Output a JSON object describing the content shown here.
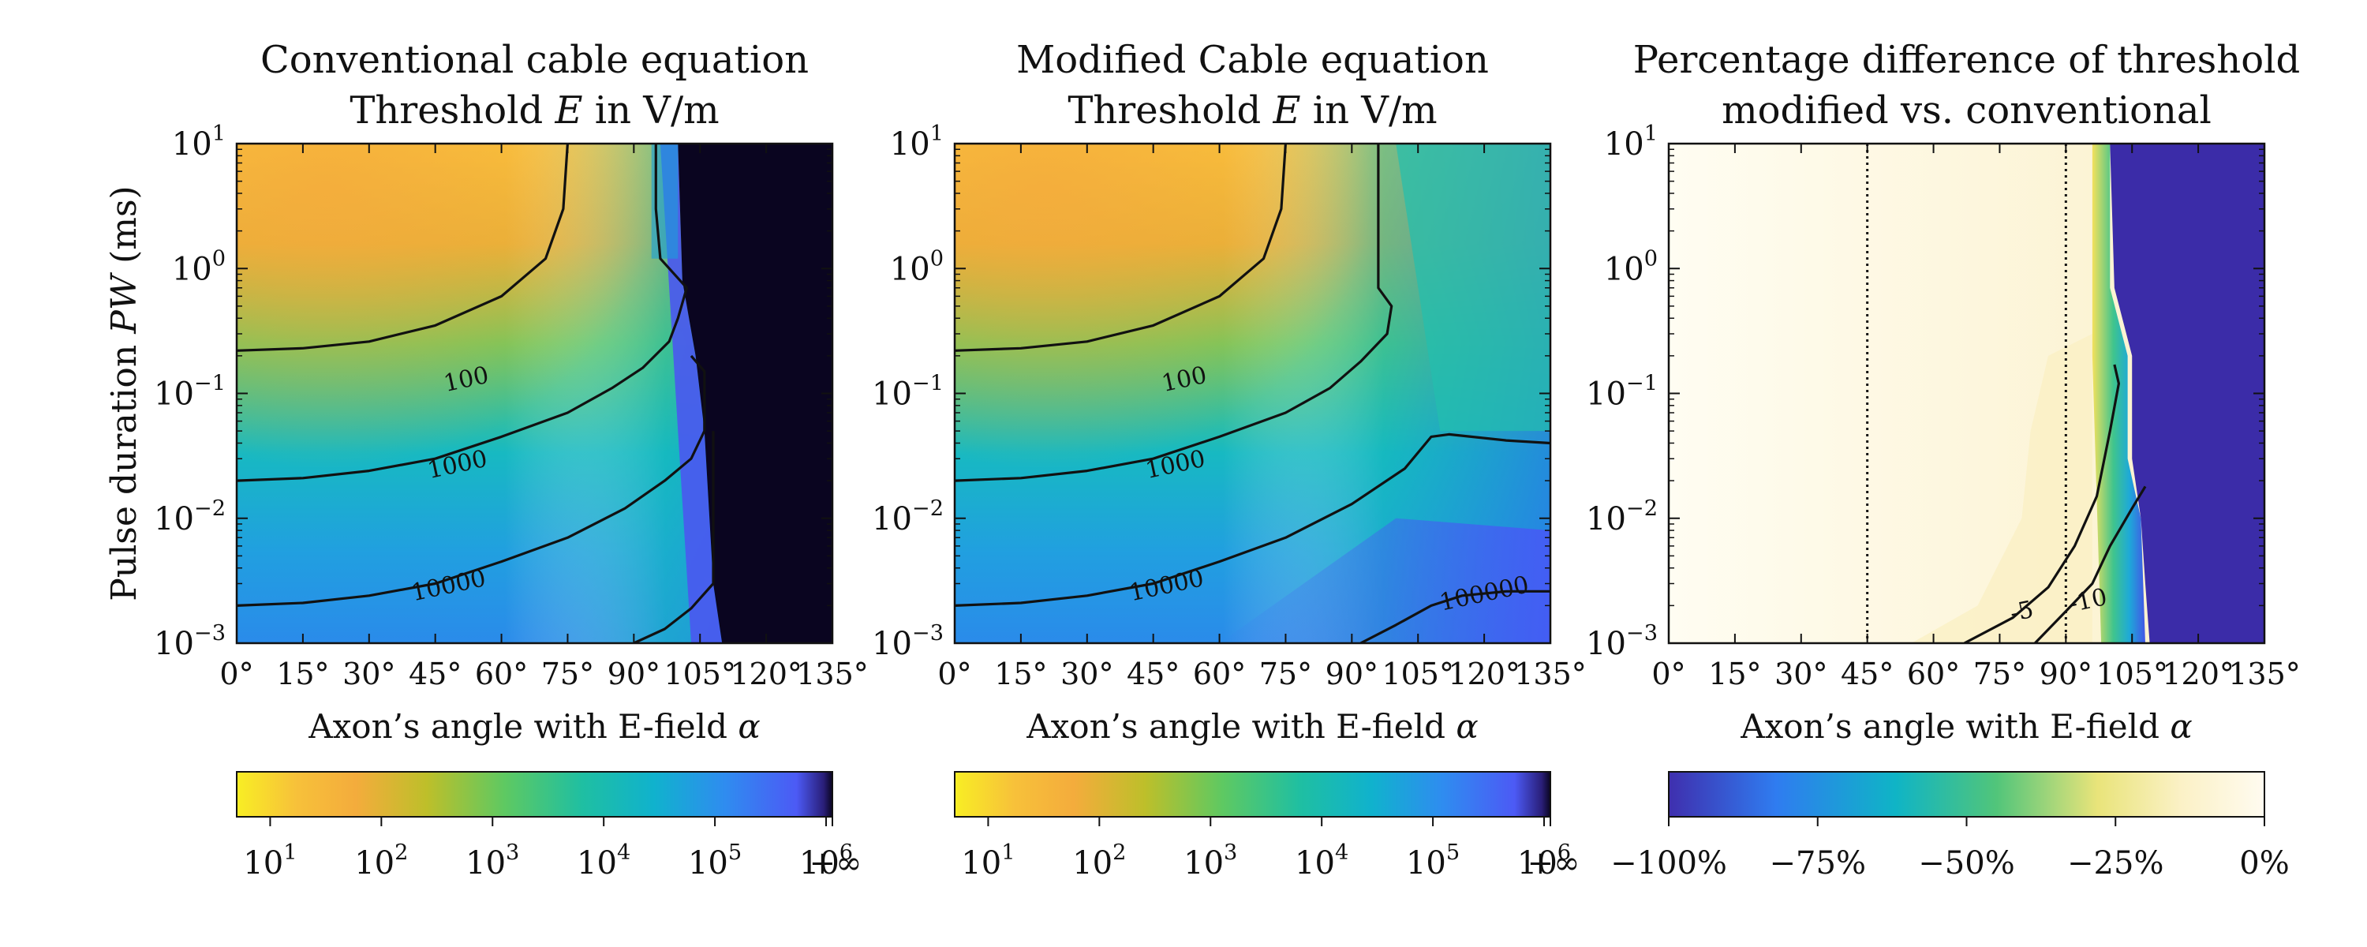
{
  "chart_data": [
    {
      "type": "heatmap",
      "title": [
        "Conventional cable equation",
        "Threshold E in V/m"
      ],
      "xlabel": "Axon’s angle with E-field α",
      "ylabel": "Pulse duration PW (ms)",
      "x_ticks": [
        "0°",
        "15°",
        "30°",
        "45°",
        "60°",
        "75°",
        "90°",
        "105°",
        "120°",
        "135°"
      ],
      "x_range": [
        0,
        135
      ],
      "y_scale": "log",
      "y_ticks": [
        "10^-3",
        "10^-2",
        "10^-1",
        "10^0",
        "10^1"
      ],
      "y_range": [
        0.001,
        10
      ],
      "contours": [
        {
          "level": "100",
          "points": [
            [
              0,
              0.22
            ],
            [
              15,
              0.23
            ],
            [
              30,
              0.26
            ],
            [
              45,
              0.35
            ],
            [
              60,
              0.6
            ],
            [
              70,
              1.2
            ],
            [
              74,
              3
            ],
            [
              75,
              10
            ]
          ]
        },
        {
          "level": "1000",
          "points": [
            [
              0,
              0.02
            ],
            [
              15,
              0.021
            ],
            [
              30,
              0.024
            ],
            [
              45,
              0.03
            ],
            [
              60,
              0.045
            ],
            [
              75,
              0.07
            ],
            [
              85,
              0.11
            ],
            [
              92,
              0.16
            ],
            [
              98,
              0.26
            ],
            [
              100,
              0.4
            ],
            [
              102,
              0.7
            ],
            [
              96,
              1.2
            ],
            [
              95,
              3
            ],
            [
              95,
              10
            ]
          ]
        },
        {
          "level": "10000",
          "points": [
            [
              0,
              0.002
            ],
            [
              15,
              0.0021
            ],
            [
              30,
              0.0024
            ],
            [
              45,
              0.003
            ],
            [
              60,
              0.0045
            ],
            [
              75,
              0.007
            ],
            [
              88,
              0.012
            ],
            [
              97,
              0.02
            ],
            [
              103,
              0.03
            ],
            [
              106,
              0.05
            ],
            [
              106,
              0.15
            ],
            [
              103,
              0.2
            ]
          ]
        },
        {
          "level": "",
          "points": [
            [
              90,
              0.001
            ],
            [
              97,
              0.0013
            ],
            [
              103,
              0.0019
            ],
            [
              108,
              0.003
            ],
            [
              108,
              0.05
            ]
          ]
        }
      ],
      "contour_labels": [
        {
          "text": "100",
          "x": 52,
          "y": 0.13
        },
        {
          "text": "1000",
          "x": 50,
          "y": 0.027
        },
        {
          "text": "10000",
          "x": 48,
          "y": 0.0029
        }
      ],
      "colorbar": {
        "scale": "log",
        "range": [
          5,
          1000000
        ],
        "ticks": [
          "10^1",
          "10^2",
          "10^3",
          "10^4",
          "10^5",
          "10^6"
        ],
        "extra_label": "+∞"
      }
    },
    {
      "type": "heatmap",
      "title": [
        "Modified Cable equation",
        "Threshold E in V/m"
      ],
      "xlabel": "Axon’s angle with E-field α",
      "x_ticks": [
        "0°",
        "15°",
        "30°",
        "45°",
        "60°",
        "75°",
        "90°",
        "105°",
        "120°",
        "135°"
      ],
      "x_range": [
        0,
        135
      ],
      "y_scale": "log",
      "y_ticks": [
        "10^-3",
        "10^-2",
        "10^-1",
        "10^0",
        "10^1"
      ],
      "y_range": [
        0.001,
        10
      ],
      "contours": [
        {
          "level": "100",
          "points": [
            [
              0,
              0.22
            ],
            [
              15,
              0.23
            ],
            [
              30,
              0.26
            ],
            [
              45,
              0.35
            ],
            [
              60,
              0.6
            ],
            [
              70,
              1.2
            ],
            [
              74,
              3
            ],
            [
              75,
              10
            ]
          ]
        },
        {
          "level": "1000",
          "points": [
            [
              0,
              0.02
            ],
            [
              15,
              0.021
            ],
            [
              30,
              0.024
            ],
            [
              45,
              0.03
            ],
            [
              60,
              0.045
            ],
            [
              75,
              0.07
            ],
            [
              85,
              0.11
            ],
            [
              92,
              0.18
            ],
            [
              98,
              0.3
            ],
            [
              99,
              0.5
            ],
            [
              96,
              0.7
            ],
            [
              96,
              2
            ],
            [
              96,
              10
            ]
          ]
        },
        {
          "level": "10000",
          "points": [
            [
              0,
              0.002
            ],
            [
              15,
              0.0021
            ],
            [
              30,
              0.0024
            ],
            [
              45,
              0.003
            ],
            [
              60,
              0.0045
            ],
            [
              75,
              0.007
            ],
            [
              90,
              0.013
            ],
            [
              102,
              0.025
            ],
            [
              108,
              0.045
            ],
            [
              112,
              0.047
            ],
            [
              125,
              0.042
            ],
            [
              135,
              0.04
            ]
          ]
        },
        {
          "level": "100000",
          "points": [
            [
              92,
              0.001
            ],
            [
              100,
              0.0014
            ],
            [
              108,
              0.002
            ],
            [
              115,
              0.0024
            ],
            [
              125,
              0.0026
            ],
            [
              135,
              0.0026
            ]
          ]
        }
      ],
      "contour_labels": [
        {
          "text": "100",
          "x": 52,
          "y": 0.13
        },
        {
          "text": "1000",
          "x": 50,
          "y": 0.027
        },
        {
          "text": "10000",
          "x": 48,
          "y": 0.0029
        },
        {
          "text": "100000",
          "x": 120,
          "y": 0.0025
        }
      ],
      "colorbar": {
        "scale": "log",
        "range": [
          5,
          1000000
        ],
        "ticks": [
          "10^1",
          "10^2",
          "10^3",
          "10^4",
          "10^5",
          "10^6"
        ],
        "extra_label": "+∞"
      }
    },
    {
      "type": "heatmap",
      "title": [
        "Percentage difference of threshold",
        "modified vs. conventional"
      ],
      "xlabel": "Axon’s angle with E-field α",
      "x_ticks": [
        "0°",
        "15°",
        "30°",
        "45°",
        "60°",
        "75°",
        "90°",
        "105°",
        "120°",
        "135°"
      ],
      "x_range": [
        0,
        135
      ],
      "y_scale": "log",
      "y_ticks": [
        "10^-3",
        "10^-2",
        "10^-1",
        "10^0",
        "10^1"
      ],
      "y_range": [
        0.001,
        10
      ],
      "reference_lines_x": [
        45,
        90
      ],
      "contours": [
        {
          "level": "-5",
          "points": [
            [
              67,
              0.001
            ],
            [
              78,
              0.0016
            ],
            [
              86,
              0.0028
            ],
            [
              92,
              0.006
            ],
            [
              97,
              0.015
            ],
            [
              100,
              0.05
            ],
            [
              102,
              0.12
            ],
            [
              101,
              0.17
            ]
          ]
        },
        {
          "level": "-10",
          "points": [
            [
              83,
              0.001
            ],
            [
              90,
              0.0018
            ],
            [
              96,
              0.003
            ],
            [
              100,
              0.006
            ],
            [
              105,
              0.012
            ],
            [
              108,
              0.018
            ]
          ]
        }
      ],
      "contour_labels": [
        {
          "text": "-5",
          "x": 80,
          "y": 0.0018
        },
        {
          "text": "-10",
          "x": 95,
          "y": 0.0022
        }
      ],
      "colorbar": {
        "scale": "linear",
        "range": [
          -100,
          0
        ],
        "ticks": [
          "−100%",
          "−75%",
          "−50%",
          "−25%",
          "0%"
        ]
      }
    }
  ]
}
